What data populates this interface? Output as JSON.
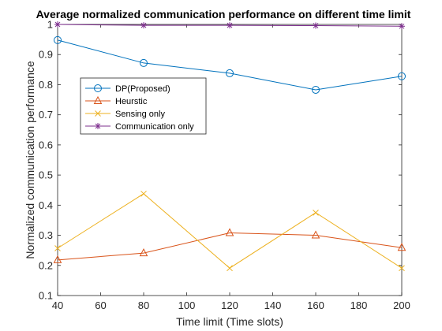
{
  "chart_data": {
    "type": "line",
    "title": "Average normalized communication performance on different time limit",
    "xlabel": "Time limit (Time slots)",
    "ylabel": "Normalized communication performance",
    "x": [
      40,
      80,
      120,
      160,
      200
    ],
    "xlim": [
      40,
      200
    ],
    "ylim": [
      0.1,
      1.0
    ],
    "xticks": [
      "40",
      "60",
      "80",
      "100",
      "120",
      "140",
      "160",
      "180",
      "200"
    ],
    "yticks": [
      "0.1",
      "0.2",
      "0.3",
      "0.4",
      "0.5",
      "0.6",
      "0.7",
      "0.8",
      "0.9",
      "1"
    ],
    "grid": false,
    "legend_position": "upper-left",
    "series": [
      {
        "name": "DP(Proposed)",
        "values": [
          0.948,
          0.872,
          0.838,
          0.783,
          0.828
        ],
        "color": "#0072BD",
        "marker": "circle"
      },
      {
        "name": "Heurstic",
        "values": [
          0.218,
          0.241,
          0.308,
          0.3,
          0.259
        ],
        "color": "#D95319",
        "marker": "triangle"
      },
      {
        "name": "Sensing only",
        "values": [
          0.257,
          0.438,
          0.191,
          0.375,
          0.191
        ],
        "color": "#EDB120",
        "marker": "x"
      },
      {
        "name": "Communication only",
        "values": [
          1.0,
          0.997,
          0.997,
          0.996,
          0.994
        ],
        "color": "#7E2F8E",
        "marker": "star"
      }
    ]
  }
}
